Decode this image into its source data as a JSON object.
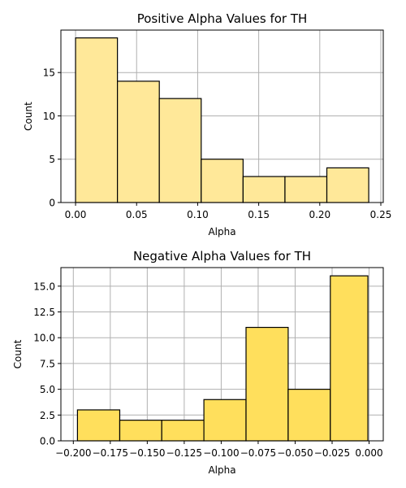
{
  "chart_data": [
    {
      "type": "bar",
      "title": "Positive Alpha Values for TH",
      "xlabel": "Alpha",
      "ylabel": "Count",
      "bar_color": "#ffe899",
      "grid": true,
      "xlim": [
        -0.012,
        0.252
      ],
      "ylim": [
        0,
        19.9
      ],
      "xticks": [
        0.0,
        0.05,
        0.1,
        0.15,
        0.2,
        0.25
      ],
      "xtick_labels": [
        "0.00",
        "0.05",
        "0.10",
        "0.15",
        "0.20",
        "0.25"
      ],
      "yticks": [
        0,
        5,
        10,
        15
      ],
      "ytick_labels": [
        "0",
        "5",
        "10",
        "15"
      ],
      "bins": [
        {
          "x0": 0.0,
          "x1": 0.0343,
          "count": 19
        },
        {
          "x0": 0.0343,
          "x1": 0.0686,
          "count": 14
        },
        {
          "x0": 0.0686,
          "x1": 0.1029,
          "count": 12
        },
        {
          "x0": 0.1029,
          "x1": 0.1372,
          "count": 5
        },
        {
          "x0": 0.1372,
          "x1": 0.1715,
          "count": 3
        },
        {
          "x0": 0.1715,
          "x1": 0.2058,
          "count": 3
        },
        {
          "x0": 0.2058,
          "x1": 0.2401,
          "count": 4
        }
      ]
    },
    {
      "type": "bar",
      "title": "Negative Alpha Values for TH",
      "xlabel": "Alpha",
      "ylabel": "Count",
      "bar_color": "#ffdf5c",
      "grid": true,
      "xlim": [
        -0.2084,
        0.0096
      ],
      "ylim": [
        0,
        16.8
      ],
      "xticks": [
        -0.2,
        -0.175,
        -0.15,
        -0.125,
        -0.1,
        -0.075,
        -0.05,
        -0.025,
        0.0
      ],
      "xtick_labels": [
        "−0.200",
        "−0.175",
        "−0.150",
        "−0.125",
        "−0.100",
        "−0.075",
        "−0.050",
        "−0.025",
        "0.000"
      ],
      "yticks": [
        0,
        2.5,
        5,
        7.5,
        10,
        12.5,
        15
      ],
      "ytick_labels": [
        "0.0",
        "2.5",
        "5.0",
        "7.5",
        "10.0",
        "12.5",
        "15.0"
      ],
      "bins": [
        {
          "x0": -0.1972,
          "x1": -0.1686,
          "count": 3
        },
        {
          "x0": -0.1686,
          "x1": -0.1402,
          "count": 2
        },
        {
          "x0": -0.1402,
          "x1": -0.1117,
          "count": 2
        },
        {
          "x0": -0.1117,
          "x1": -0.0832,
          "count": 4
        },
        {
          "x0": -0.0832,
          "x1": -0.0547,
          "count": 11
        },
        {
          "x0": -0.0547,
          "x1": -0.0262,
          "count": 5
        },
        {
          "x0": -0.0262,
          "x1": -0.0008,
          "count": 16
        }
      ]
    }
  ]
}
